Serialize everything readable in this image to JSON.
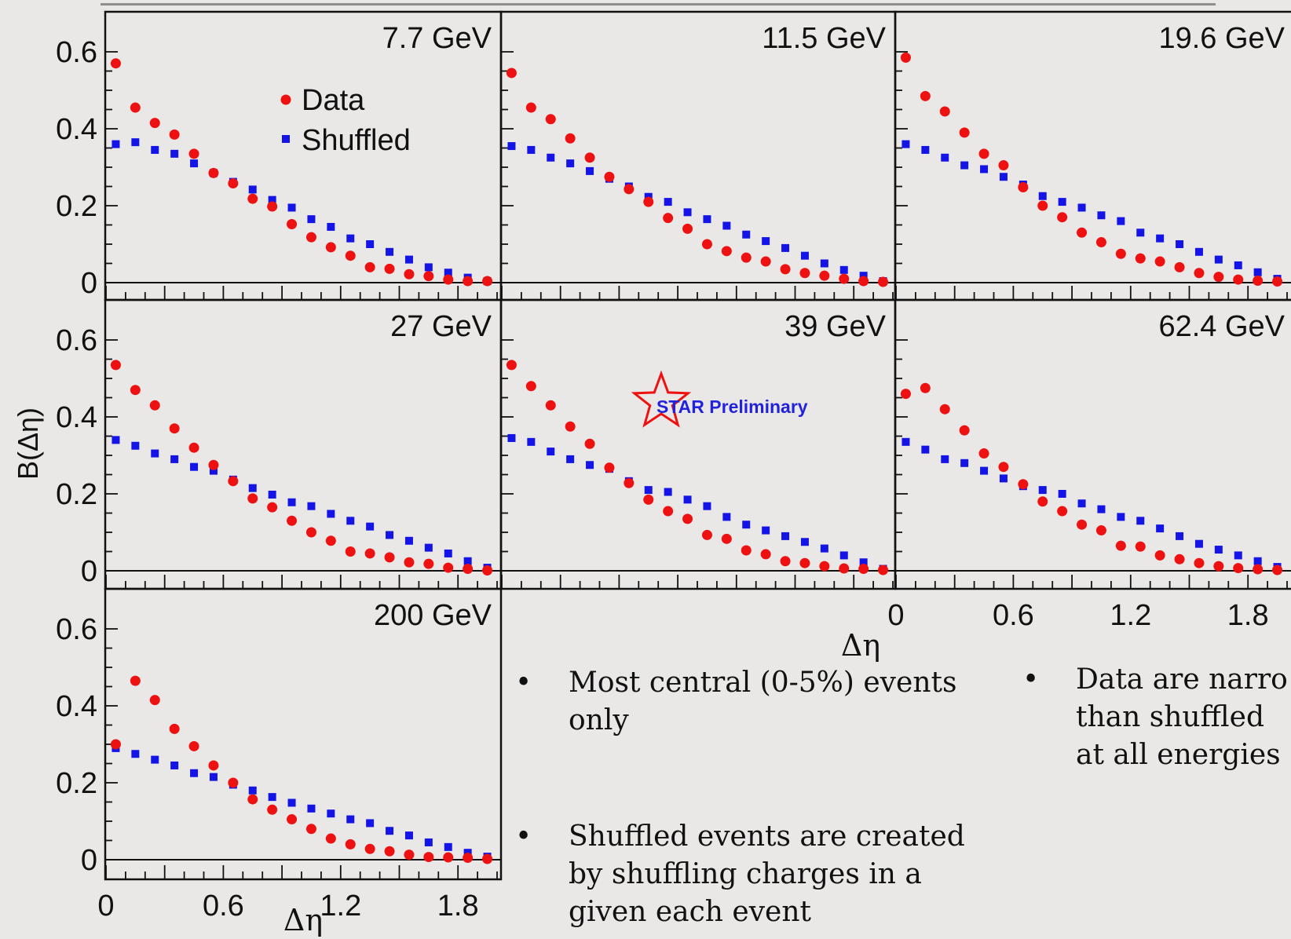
{
  "y_axis_label": "B(Δη)",
  "x_axis_label": "Δη",
  "legend": {
    "data": "Data",
    "shuffled": "Shuffled"
  },
  "watermark": "STAR Preliminary",
  "colors": {
    "data": "#ee1111",
    "shuffled": "#1414e6",
    "frame": "#111111",
    "background": "#e9e8e7"
  },
  "bullets": [
    {
      "text": "Most central (0-5%) events\nonly"
    },
    {
      "text": "Shuffled events are created\nby shuffling charges in a\ngiven each event"
    },
    {
      "text": "Data are narro\nthan shuffled\nat all energies"
    }
  ],
  "chart_data": [
    {
      "type": "scatter",
      "title": "7.7 GeV",
      "xlim": [
        0,
        2.0
      ],
      "ylim": [
        -0.05,
        0.7
      ],
      "yticks": [
        "0",
        "0.2",
        "0.4",
        "0.6"
      ],
      "xticks": [],
      "x": [
        0.05,
        0.15,
        0.25,
        0.35,
        0.45,
        0.55,
        0.65,
        0.75,
        0.85,
        0.95,
        1.05,
        1.15,
        1.25,
        1.35,
        1.45,
        1.55,
        1.65,
        1.75,
        1.85,
        1.95
      ],
      "series": [
        {
          "name": "Data",
          "values": [
            0.57,
            0.455,
            0.415,
            0.385,
            0.335,
            0.285,
            0.258,
            0.218,
            0.198,
            0.152,
            0.118,
            0.092,
            0.07,
            0.04,
            0.036,
            0.022,
            0.017,
            0.008,
            0.004,
            0.004
          ]
        },
        {
          "name": "Shuffled",
          "values": [
            0.36,
            0.365,
            0.345,
            0.335,
            0.31,
            0.285,
            0.262,
            0.242,
            0.215,
            0.195,
            0.165,
            0.145,
            0.115,
            0.1,
            0.08,
            0.06,
            0.04,
            0.026,
            0.013,
            0.004
          ]
        }
      ]
    },
    {
      "type": "scatter",
      "title": "11.5 GeV",
      "xlim": [
        0,
        2.0
      ],
      "ylim": [
        -0.05,
        0.7
      ],
      "yticks": [],
      "xticks": [],
      "x": [
        0.05,
        0.15,
        0.25,
        0.35,
        0.45,
        0.55,
        0.65,
        0.75,
        0.85,
        0.95,
        1.05,
        1.15,
        1.25,
        1.35,
        1.45,
        1.55,
        1.65,
        1.75,
        1.85,
        1.95
      ],
      "series": [
        {
          "name": "Data",
          "values": [
            0.545,
            0.455,
            0.425,
            0.375,
            0.325,
            0.275,
            0.243,
            0.21,
            0.168,
            0.14,
            0.1,
            0.082,
            0.065,
            0.055,
            0.035,
            0.025,
            0.018,
            0.01,
            0.004,
            0.002
          ]
        },
        {
          "name": "Shuffled",
          "values": [
            0.355,
            0.345,
            0.325,
            0.31,
            0.29,
            0.27,
            0.25,
            0.223,
            0.21,
            0.183,
            0.165,
            0.148,
            0.125,
            0.108,
            0.09,
            0.07,
            0.05,
            0.033,
            0.018,
            0.004
          ]
        }
      ]
    },
    {
      "type": "scatter",
      "title": "19.6 GeV",
      "xlim": [
        0,
        2.0
      ],
      "ylim": [
        -0.05,
        0.7
      ],
      "yticks": [],
      "xticks": [],
      "x": [
        0.05,
        0.15,
        0.25,
        0.35,
        0.45,
        0.55,
        0.65,
        0.75,
        0.85,
        0.95,
        1.05,
        1.15,
        1.25,
        1.35,
        1.45,
        1.55,
        1.65,
        1.75,
        1.85,
        1.95
      ],
      "series": [
        {
          "name": "Data",
          "values": [
            0.585,
            0.485,
            0.445,
            0.39,
            0.335,
            0.305,
            0.248,
            0.2,
            0.17,
            0.13,
            0.105,
            0.075,
            0.063,
            0.055,
            0.04,
            0.025,
            0.015,
            0.008,
            0.005,
            0.003
          ]
        },
        {
          "name": "Shuffled",
          "values": [
            0.36,
            0.345,
            0.325,
            0.305,
            0.295,
            0.275,
            0.255,
            0.225,
            0.21,
            0.195,
            0.175,
            0.16,
            0.13,
            0.115,
            0.1,
            0.08,
            0.06,
            0.045,
            0.027,
            0.01
          ]
        }
      ]
    },
    {
      "type": "scatter",
      "title": "27 GeV",
      "xlim": [
        0,
        2.0
      ],
      "ylim": [
        -0.05,
        0.7
      ],
      "yticks": [
        "0",
        "0.2",
        "0.4",
        "0.6"
      ],
      "xticks": [],
      "x": [
        0.05,
        0.15,
        0.25,
        0.35,
        0.45,
        0.55,
        0.65,
        0.75,
        0.85,
        0.95,
        1.05,
        1.15,
        1.25,
        1.35,
        1.45,
        1.55,
        1.65,
        1.75,
        1.85,
        1.95
      ],
      "series": [
        {
          "name": "Data",
          "values": [
            0.535,
            0.47,
            0.43,
            0.37,
            0.32,
            0.275,
            0.233,
            0.188,
            0.165,
            0.13,
            0.1,
            0.078,
            0.05,
            0.045,
            0.035,
            0.022,
            0.018,
            0.008,
            0.005,
            0.001
          ]
        },
        {
          "name": "Shuffled",
          "values": [
            0.34,
            0.325,
            0.305,
            0.29,
            0.27,
            0.26,
            0.237,
            0.215,
            0.198,
            0.178,
            0.168,
            0.148,
            0.13,
            0.115,
            0.093,
            0.078,
            0.06,
            0.045,
            0.025,
            0.008
          ]
        }
      ]
    },
    {
      "type": "scatter",
      "title": "39 GeV",
      "xlim": [
        0,
        2.0
      ],
      "ylim": [
        -0.05,
        0.7
      ],
      "yticks": [],
      "xticks": [],
      "x": [
        0.05,
        0.15,
        0.25,
        0.35,
        0.45,
        0.55,
        0.65,
        0.75,
        0.85,
        0.95,
        1.05,
        1.15,
        1.25,
        1.35,
        1.45,
        1.55,
        1.65,
        1.75,
        1.85,
        1.95
      ],
      "series": [
        {
          "name": "Data",
          "values": [
            0.535,
            0.48,
            0.43,
            0.375,
            0.33,
            0.268,
            0.228,
            0.185,
            0.155,
            0.135,
            0.093,
            0.083,
            0.053,
            0.043,
            0.025,
            0.02,
            0.012,
            0.006,
            0.005,
            0.002
          ]
        },
        {
          "name": "Shuffled",
          "values": [
            0.345,
            0.335,
            0.31,
            0.29,
            0.275,
            0.265,
            0.233,
            0.21,
            0.205,
            0.185,
            0.168,
            0.14,
            0.12,
            0.105,
            0.09,
            0.075,
            0.058,
            0.04,
            0.022,
            0.005
          ]
        }
      ]
    },
    {
      "type": "scatter",
      "title": "62.4 GeV",
      "xlim": [
        0,
        2.0
      ],
      "ylim": [
        -0.05,
        0.7
      ],
      "yticks": [],
      "xticks": [
        "0",
        "0.6",
        "1.2",
        "1.8"
      ],
      "x": [
        0.05,
        0.15,
        0.25,
        0.35,
        0.45,
        0.55,
        0.65,
        0.75,
        0.85,
        0.95,
        1.05,
        1.15,
        1.25,
        1.35,
        1.45,
        1.55,
        1.65,
        1.75,
        1.85,
        1.95
      ],
      "series": [
        {
          "name": "Data",
          "values": [
            0.46,
            0.475,
            0.42,
            0.365,
            0.305,
            0.27,
            0.225,
            0.18,
            0.155,
            0.12,
            0.105,
            0.065,
            0.063,
            0.04,
            0.03,
            0.02,
            0.012,
            0.007,
            0.004,
            0.002
          ]
        },
        {
          "name": "Shuffled",
          "values": [
            0.335,
            0.315,
            0.29,
            0.28,
            0.26,
            0.24,
            0.22,
            0.21,
            0.2,
            0.175,
            0.16,
            0.14,
            0.13,
            0.11,
            0.09,
            0.07,
            0.055,
            0.04,
            0.025,
            0.01
          ]
        }
      ]
    },
    {
      "type": "scatter",
      "title": "200 GeV",
      "xlim": [
        0,
        2.0
      ],
      "ylim": [
        -0.05,
        0.7
      ],
      "yticks": [
        "0",
        "0.2",
        "0.4",
        "0.6"
      ],
      "xticks": [
        "0",
        "0.6",
        "1.2",
        "1.8"
      ],
      "x": [
        0.05,
        0.15,
        0.25,
        0.35,
        0.45,
        0.55,
        0.65,
        0.75,
        0.85,
        0.95,
        1.05,
        1.15,
        1.25,
        1.35,
        1.45,
        1.55,
        1.65,
        1.75,
        1.85,
        1.95
      ],
      "series": [
        {
          "name": "Data",
          "values": [
            0.3,
            0.465,
            0.415,
            0.34,
            0.295,
            0.245,
            0.2,
            0.157,
            0.13,
            0.105,
            0.08,
            0.055,
            0.04,
            0.028,
            0.022,
            0.013,
            0.007,
            0.006,
            0.005,
            0.002
          ]
        },
        {
          "name": "Shuffled",
          "values": [
            0.29,
            0.275,
            0.26,
            0.245,
            0.225,
            0.215,
            0.195,
            0.18,
            0.163,
            0.148,
            0.133,
            0.12,
            0.105,
            0.095,
            0.075,
            0.063,
            0.045,
            0.033,
            0.018,
            0.008
          ]
        }
      ]
    }
  ]
}
